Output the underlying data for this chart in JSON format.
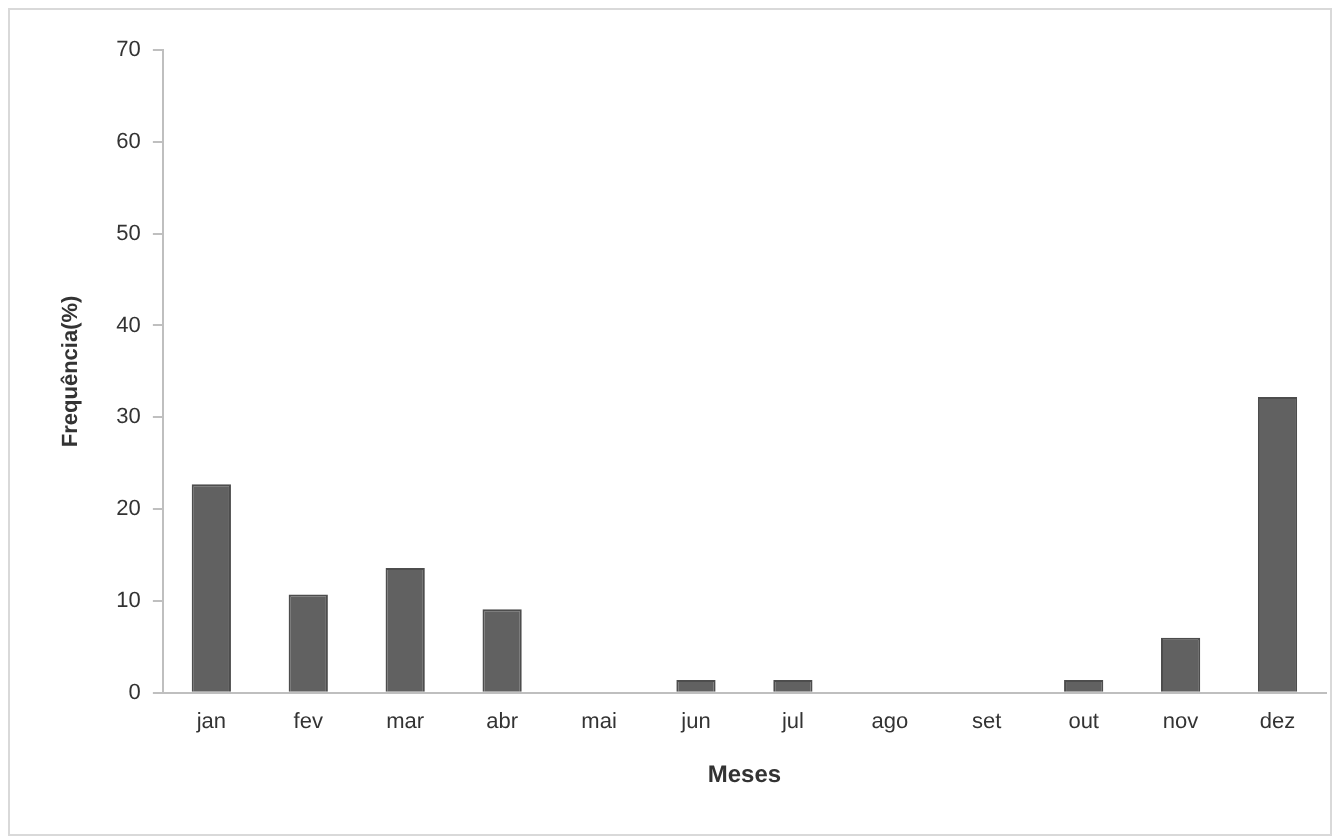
{
  "chart_data": {
    "type": "bar",
    "xlabel": "Meses",
    "ylabel": "Frequência(%)",
    "categories": [
      "jan",
      "fev",
      "mar",
      "abr",
      "mai",
      "jun",
      "jul",
      "ago",
      "set",
      "out",
      "nov",
      "dez"
    ],
    "values": [
      22.7,
      10.7,
      13.6,
      9.1,
      0,
      1.4,
      1.4,
      0,
      0,
      1.4,
      6.0,
      32.2
    ],
    "color": "#616161",
    "ylim": [
      0,
      70
    ],
    "yticks": [
      0,
      10,
      20,
      30,
      40,
      50,
      60,
      70
    ],
    "grid": false,
    "legend": false
  }
}
